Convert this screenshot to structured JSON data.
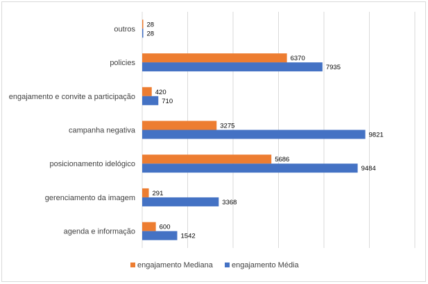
{
  "chart_data": {
    "type": "bar",
    "orientation": "horizontal",
    "categories": [
      "outros",
      "policies",
      "engajamento e convite a participação",
      "campanha negativa",
      "posicionamento idelógico",
      "gerenciamento da imagem",
      "agenda e informação"
    ],
    "series": [
      {
        "name": "engajamento Mediana",
        "color": "#ed7d31",
        "values": [
          28,
          6370,
          420,
          3275,
          5686,
          291,
          600
        ]
      },
      {
        "name": "engajamento Média",
        "color": "#4472c4",
        "values": [
          28,
          7935,
          710,
          9821,
          9484,
          3368,
          1542
        ]
      }
    ],
    "xlim": [
      0,
      12000
    ],
    "x_gridlines": true,
    "x_tick_labels_shown": false,
    "legend_position": "bottom",
    "data_labels": true
  }
}
